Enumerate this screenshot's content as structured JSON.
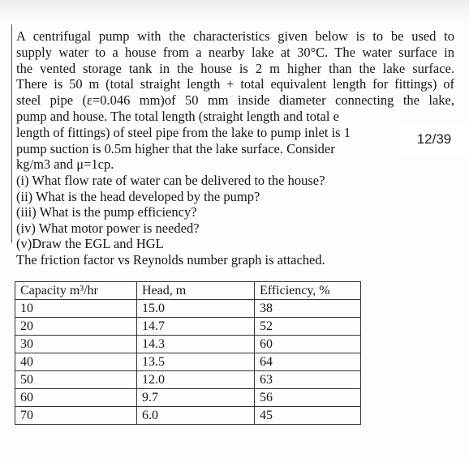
{
  "problem": {
    "paragraph": [
      "A centrifugal pump with the characteristics given below is to be used to",
      "supply water to a house from a nearby lake at 30°C. The water surface in",
      "the vented storage tank in the house is 2 m higher than the lake surface.",
      "There is 50 m (total straight length + total equivalent length for fittings) of",
      "steel pipe (ε=0.046 mm)of 50 mm inside diameter connecting the lake,",
      "pump and house. The total length (straight length and total e",
      "length of fittings) of steel pipe from the lake to pump inlet is 1",
      "pump suction is 0.5m higher that the lake surface. Consider",
      "kg/m3 and μ=1cp."
    ],
    "questions": [
      "(i) What flow rate of water can be delivered to the house?",
      "(ii) What is the head developed by the pump?",
      "(iii) What is the pump efficiency?",
      "(iv) What motor power is needed?",
      "(v)Draw the EGL and HGL",
      "The friction factor vs Reynolds number graph is attached."
    ]
  },
  "table": {
    "header": [
      "Capacity m³/hr",
      "Head, m",
      "Efficiency, %"
    ],
    "rows": [
      [
        "10",
        "15.0",
        "38"
      ],
      [
        "20",
        "14.7",
        "52"
      ],
      [
        "30",
        "14.3",
        "60"
      ],
      [
        "40",
        "13.5",
        "64"
      ],
      [
        "50",
        "12.0",
        "63"
      ],
      [
        "60",
        "9.7",
        "56"
      ],
      [
        "70",
        "6.0",
        "45"
      ]
    ]
  },
  "pager": "12/39"
}
